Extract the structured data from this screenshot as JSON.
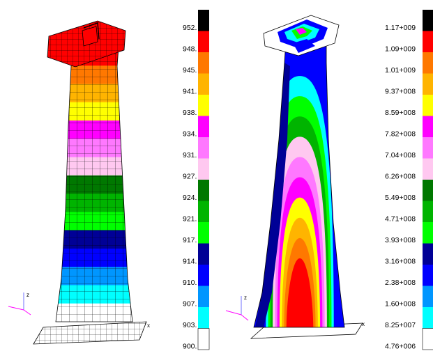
{
  "left_panel": {
    "axis_triad": {
      "z_label": "z",
      "x_label": "x"
    },
    "legend": {
      "labels": [
        "952.",
        "948.",
        "945.",
        "941.",
        "938.",
        "934.",
        "931.",
        "927.",
        "924.",
        "921.",
        "917.",
        "914.",
        "910.",
        "907.",
        "903.",
        "900."
      ],
      "colors": [
        "#000000",
        "#ff0000",
        "#ff7800",
        "#ffb400",
        "#ffff00",
        "#ff00ff",
        "#ff78ff",
        "#ffc8f0",
        "#007800",
        "#00b400",
        "#00ff00",
        "#000096",
        "#0000ff",
        "#0096ff",
        "#00ffff",
        "#ffffff"
      ]
    },
    "band_sequence_top_to_bottom": [
      "#ff0000",
      "#ff7800",
      "#ffb400",
      "#ffff00",
      "#ff00ff",
      "#ff78ff",
      "#ffc8f0",
      "#007800",
      "#00b400",
      "#00ff00",
      "#000096",
      "#0000ff",
      "#0096ff",
      "#00ffff",
      "#ffffff"
    ]
  },
  "right_panel": {
    "axis_triad": {
      "z_label": "z",
      "x_label": "x"
    },
    "legend": {
      "labels": [
        "1.17+009",
        "1.09+009",
        "1.01+009",
        "9.37+008",
        "8.59+008",
        "7.82+008",
        "7.04+008",
        "6.26+008",
        "5.49+008",
        "4.71+008",
        "3.93+008",
        "3.16+008",
        "2.38+008",
        "1.60+008",
        "8.25+007",
        "4.76+006"
      ],
      "colors": [
        "#000000",
        "#ff0000",
        "#ff7800",
        "#ffb400",
        "#ffff00",
        "#ff00ff",
        "#ff78ff",
        "#ffc8f0",
        "#007800",
        "#00b400",
        "#00ff00",
        "#000096",
        "#0000ff",
        "#0096ff",
        "#00ffff",
        "#ffffff"
      ]
    },
    "contour_layers_outer_to_inner": [
      "#0000ff",
      "#00ffff",
      "#00ff00",
      "#00b400",
      "#ffc8f0",
      "#ff78ff",
      "#ff00ff",
      "#ffff00",
      "#ffb400",
      "#ff7800",
      "#ff0000"
    ]
  }
}
